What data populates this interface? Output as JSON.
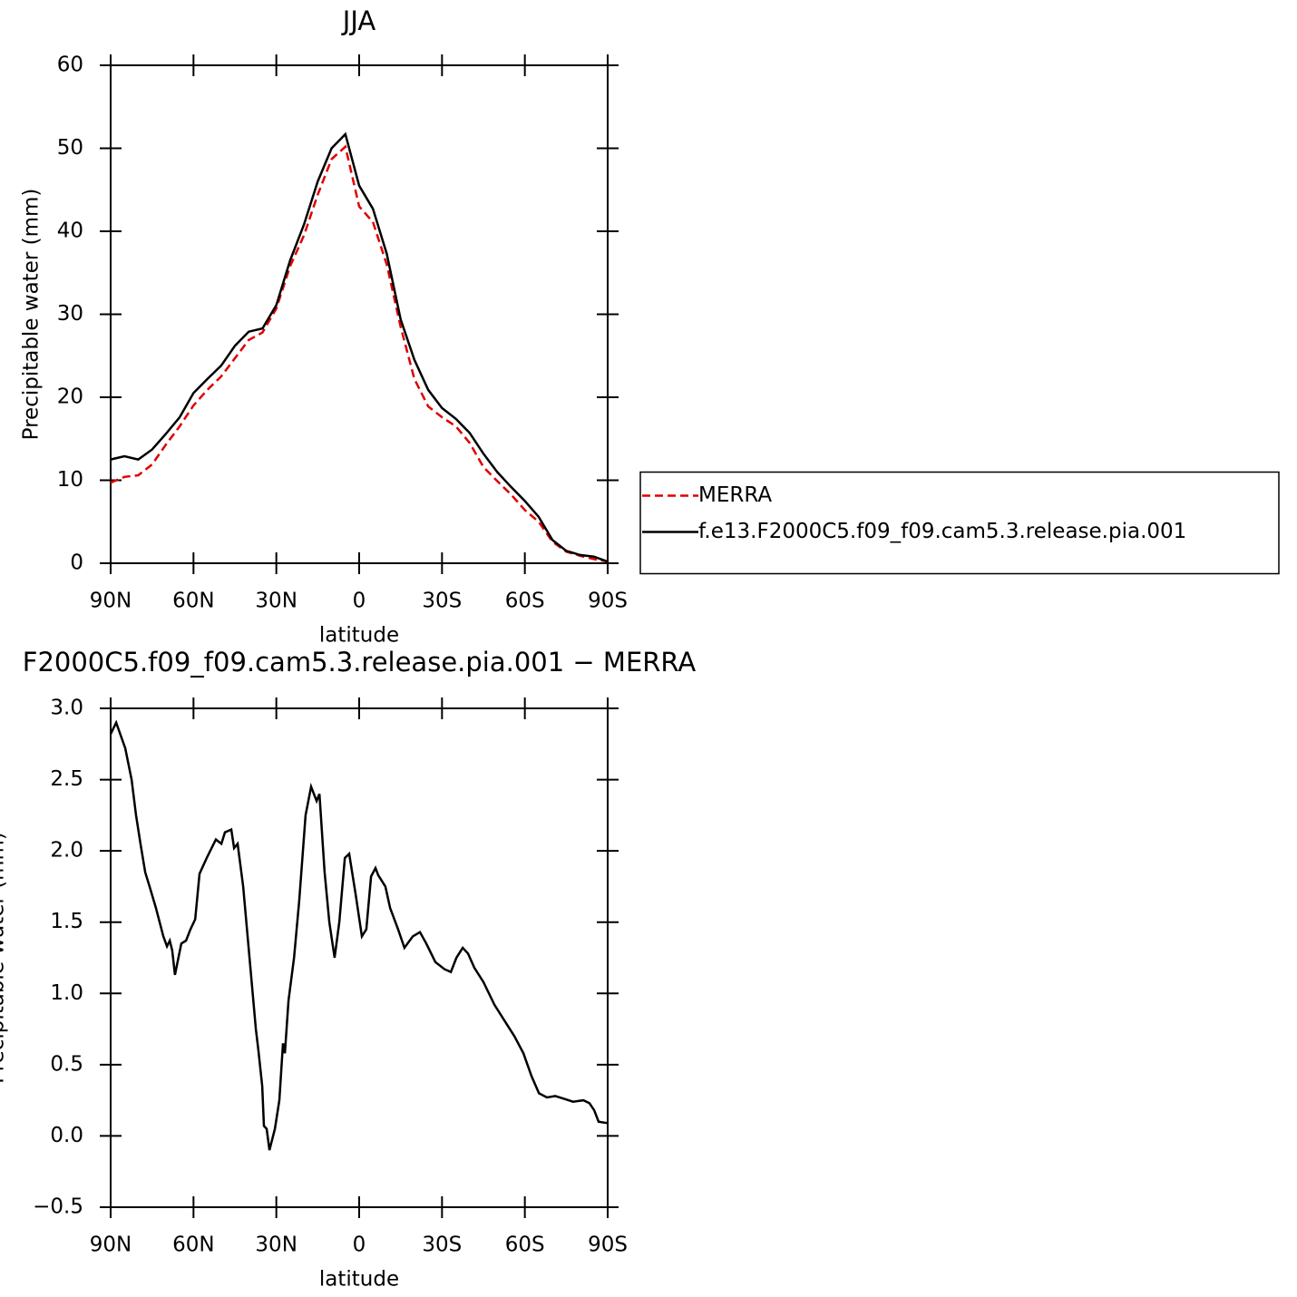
{
  "chart_data": [
    {
      "type": "line",
      "title": "JJA",
      "x_label": "latitude",
      "y_label": "Precipitable water (mm)",
      "x": [
        90,
        85,
        80,
        75,
        70,
        65,
        60,
        55,
        50,
        45,
        40,
        35,
        30,
        25,
        20,
        15,
        10,
        5,
        0,
        -5,
        -10,
        -15,
        -20,
        -25,
        -30,
        -35,
        -40,
        -45,
        -50,
        -55,
        -60,
        -65,
        -70,
        -75,
        -80,
        -85,
        -90
      ],
      "series": [
        {
          "name": "MERRA",
          "color": "#e00000",
          "linestyle": "dashed",
          "values": [
            9.7,
            10.4,
            10.6,
            11.9,
            14.3,
            16.5,
            19.0,
            20.9,
            22.5,
            24.7,
            26.9,
            27.8,
            30.7,
            35.8,
            39.5,
            44.4,
            48.7,
            50.2,
            43.0,
            41.1,
            36.0,
            28.5,
            22.2,
            18.9,
            17.6,
            16.5,
            14.5,
            11.6,
            9.9,
            8.3,
            6.4,
            5.0,
            2.6,
            1.4,
            0.9,
            0.5,
            0.2
          ]
        },
        {
          "name": "f.e13.F2000C5.f09_f09.cam5.3.release.pia.001",
          "color": "#000000",
          "linestyle": "solid",
          "values": [
            12.5,
            12.9,
            12.5,
            13.7,
            15.6,
            17.6,
            20.5,
            22.2,
            23.8,
            26.2,
            27.9,
            28.3,
            31.1,
            36.5,
            40.8,
            46.0,
            50.0,
            51.7,
            45.5,
            42.7,
            37.3,
            29.4,
            24.5,
            20.9,
            18.7,
            17.4,
            15.7,
            13.2,
            11.0,
            9.2,
            7.5,
            5.6,
            2.8,
            1.5,
            1.0,
            0.8,
            0.2
          ]
        }
      ],
      "xlim": [
        90,
        -90
      ],
      "xticks": [
        {
          "value": 90,
          "label": "90N"
        },
        {
          "value": 60,
          "label": "60N"
        },
        {
          "value": 30,
          "label": "30N"
        },
        0,
        {
          "value": -30,
          "label": "30S"
        },
        {
          "value": -60,
          "label": "60S"
        },
        {
          "value": -90,
          "label": "90S"
        }
      ],
      "ylim": [
        0,
        60
      ],
      "yticks": [
        0,
        10,
        20,
        30,
        40,
        50,
        60
      ],
      "legend": "right"
    },
    {
      "type": "line",
      "title": "F2000C5.f09_f09.cam5.3.release.pia.001 − MERRA",
      "x_label": "latitude",
      "y_label": "Precipitable water (mm)",
      "x": [
        90,
        88,
        84.7,
        82.4,
        80.8,
        79.2,
        77.5,
        75.9,
        73.6,
        70.9,
        69.6,
        68.6,
        67.7,
        66.7,
        64.4,
        62.7,
        61.1,
        59.4,
        57.8,
        55.2,
        51.9,
        49.9,
        48.6,
        46.3,
        45.3,
        44,
        42,
        39.7,
        37.4,
        36.5,
        35.1,
        34.5,
        33.5,
        32.5,
        30.5,
        28.9,
        27.6,
        26.9,
        25.6,
        23.6,
        21.7,
        19.4,
        17.4,
        15.4,
        14.4,
        12.5,
        10.8,
        8.9,
        7.2,
        5.2,
        3.6,
        1.3,
        -1,
        -2.6,
        -4.3,
        -5.9,
        -6.9,
        -9.5,
        -11.2,
        -14.1,
        -16.4,
        -19.4,
        -22,
        -24.3,
        -27.6,
        -30.9,
        -33.2,
        -35.2,
        -37.5,
        -39.4,
        -41.7,
        -45,
        -49,
        -52.9,
        -56.2,
        -59.5,
        -62.4,
        -65.1,
        -68,
        -71,
        -74.3,
        -77.5,
        -81.2,
        -83.4,
        -85.1,
        -86.7,
        -90
      ],
      "values": [
        2.82,
        2.9,
        2.72,
        2.5,
        2.25,
        2.05,
        1.85,
        1.75,
        1.6,
        1.4,
        1.33,
        1.37,
        1.3,
        1.13,
        1.35,
        1.37,
        1.45,
        1.52,
        1.84,
        1.95,
        2.08,
        2.05,
        2.13,
        2.15,
        2.02,
        2.05,
        1.75,
        1.25,
        0.75,
        0.6,
        0.35,
        0.07,
        0.05,
        -0.1,
        0.05,
        0.25,
        0.65,
        0.58,
        0.95,
        1.25,
        1.65,
        2.25,
        2.45,
        2.35,
        2.4,
        1.85,
        1.5,
        1.25,
        1.5,
        1.95,
        1.98,
        1.7,
        1.4,
        1.45,
        1.82,
        1.88,
        1.83,
        1.75,
        1.6,
        1.45,
        1.32,
        1.4,
        1.43,
        1.35,
        1.22,
        1.17,
        1.15,
        1.25,
        1.32,
        1.28,
        1.18,
        1.08,
        0.92,
        0.8,
        0.7,
        0.58,
        0.42,
        0.3,
        0.27,
        0.28,
        0.26,
        0.24,
        0.25,
        0.23,
        0.18,
        0.1,
        0.09
      ],
      "color": "#000000",
      "xlim": [
        90,
        -90
      ],
      "xticks": [
        {
          "value": 90,
          "label": "90N"
        },
        {
          "value": 60,
          "label": "60N"
        },
        {
          "value": 30,
          "label": "30N"
        },
        0,
        {
          "value": -30,
          "label": "30S"
        },
        {
          "value": -60,
          "label": "60S"
        },
        {
          "value": -90,
          "label": "90S"
        }
      ],
      "ylim": [
        -0.5,
        3.0
      ],
      "yticks": [
        {
          "value": -0.5,
          "label": "−0.5"
        },
        {
          "value": 0,
          "label": "0.0"
        },
        {
          "value": 0.5,
          "label": "0.5"
        },
        {
          "value": 1,
          "label": "1.0"
        },
        {
          "value": 1.5,
          "label": "1.5"
        },
        {
          "value": 2,
          "label": "2.0"
        },
        {
          "value": 2.5,
          "label": "2.5"
        },
        {
          "value": 3,
          "label": "3.0"
        }
      ]
    }
  ]
}
